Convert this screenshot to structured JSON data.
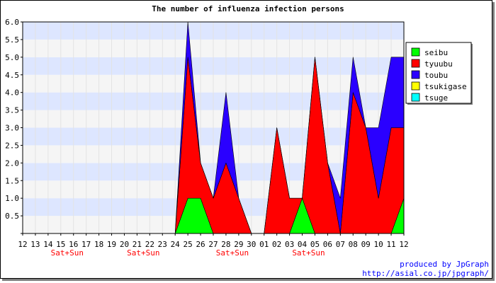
{
  "credits": {
    "line1": "produced by JpGraph",
    "line2": "http://asial.co.jp/jpgraph/"
  },
  "chart_data": {
    "type": "area",
    "stacked": true,
    "title": "The number of influenza infection persons",
    "xlabel": "",
    "ylabel": "",
    "ylim": [
      0,
      6
    ],
    "ytick_step": 0.5,
    "grid": "horizontal bands",
    "band_colors": [
      "#f5f5f5",
      "#dde6ff"
    ],
    "legend_position": "right",
    "categories": [
      "12",
      "13",
      "14",
      "15",
      "16",
      "17",
      "18",
      "19",
      "20",
      "21",
      "22",
      "23",
      "24",
      "25",
      "26",
      "27",
      "28",
      "29",
      "30",
      "01",
      "02",
      "03",
      "04",
      "05",
      "06",
      "07",
      "08",
      "09",
      "10",
      "11",
      "12"
    ],
    "weekend_marks": [
      {
        "index": 3,
        "text": "Sat+Sun"
      },
      {
        "index": 9,
        "text": "Sat+Sun"
      },
      {
        "index": 16,
        "text": "Sat+Sun"
      },
      {
        "index": 22,
        "text": "Sat+Sun"
      }
    ],
    "series": [
      {
        "name": "seibu",
        "color": "#00ff00",
        "values": [
          0,
          0,
          0,
          0,
          0,
          0,
          0,
          0,
          0,
          0,
          0,
          0,
          0,
          1,
          1,
          0,
          0,
          0,
          0,
          0,
          0,
          0,
          1,
          0,
          0,
          0,
          0,
          0,
          0,
          0,
          1
        ]
      },
      {
        "name": "tyuubu",
        "color": "#ff0000",
        "values": [
          0,
          0,
          0,
          0,
          0,
          0,
          0,
          0,
          0,
          0,
          0,
          0,
          0,
          4,
          1,
          1,
          2,
          1,
          0,
          0,
          3,
          1,
          0,
          5,
          2,
          0,
          4,
          3,
          1,
          3,
          2
        ]
      },
      {
        "name": "toubu",
        "color": "#2a00ff",
        "values": [
          0,
          0,
          0,
          0,
          0,
          0,
          0,
          0,
          0,
          0,
          0,
          0,
          0,
          1,
          0,
          0,
          2,
          0,
          0,
          0,
          0,
          0,
          0,
          0,
          0,
          1,
          1,
          0,
          2,
          2,
          2
        ]
      },
      {
        "name": "tsukigase",
        "color": "#ffff00",
        "values": [
          0,
          0,
          0,
          0,
          0,
          0,
          0,
          0,
          0,
          0,
          0,
          0,
          0,
          0,
          0,
          0,
          0,
          0,
          0,
          0,
          0,
          0,
          0,
          0,
          0,
          0,
          0,
          0,
          0,
          0,
          0
        ]
      },
      {
        "name": "tsuge",
        "color": "#00ffff",
        "values": [
          0,
          0,
          0,
          0,
          0,
          0,
          0,
          0,
          0,
          0,
          0,
          0,
          0,
          0,
          0,
          0,
          0,
          0,
          0,
          0,
          0,
          0,
          0,
          0,
          0,
          0,
          0,
          0,
          0,
          0,
          0
        ]
      }
    ]
  }
}
